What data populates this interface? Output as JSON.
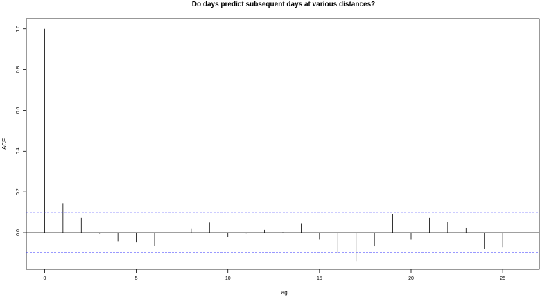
{
  "chart_data": {
    "type": "bar",
    "title": "Do days predict subsequent days at various distances?",
    "xlabel": "Lag",
    "ylabel": "ACF",
    "xlim": [
      -1,
      27
    ],
    "ylim": [
      -0.18,
      1.05
    ],
    "x_ticks": [
      0,
      5,
      10,
      15,
      20,
      25
    ],
    "x_tick_labels": [
      "0",
      "5",
      "10",
      "15",
      "20",
      "25"
    ],
    "y_ticks": [
      0.0,
      0.2,
      0.4,
      0.6,
      0.8,
      1.0
    ],
    "y_tick_labels": [
      "0.0",
      "0.2",
      "0.4",
      "0.6",
      "0.8",
      "1.0"
    ],
    "confidence_bounds": [
      0.098,
      -0.098
    ],
    "lags": [
      0,
      1,
      2,
      3,
      4,
      5,
      6,
      7,
      8,
      9,
      10,
      11,
      12,
      13,
      14,
      15,
      16,
      17,
      18,
      19,
      20,
      21,
      22,
      23,
      24,
      25,
      26
    ],
    "values": [
      1.0,
      0.145,
      0.072,
      -0.005,
      -0.042,
      -0.048,
      -0.065,
      -0.012,
      0.018,
      0.05,
      -0.022,
      -0.004,
      0.014,
      0.002,
      0.046,
      -0.032,
      -0.1,
      -0.14,
      -0.068,
      0.092,
      -0.032,
      0.072,
      0.054,
      0.024,
      -0.078,
      -0.072,
      0.005
    ],
    "colors": {
      "bars": "#000000",
      "confidence": "#3333ff",
      "axes": "#000000"
    },
    "grid": false
  }
}
